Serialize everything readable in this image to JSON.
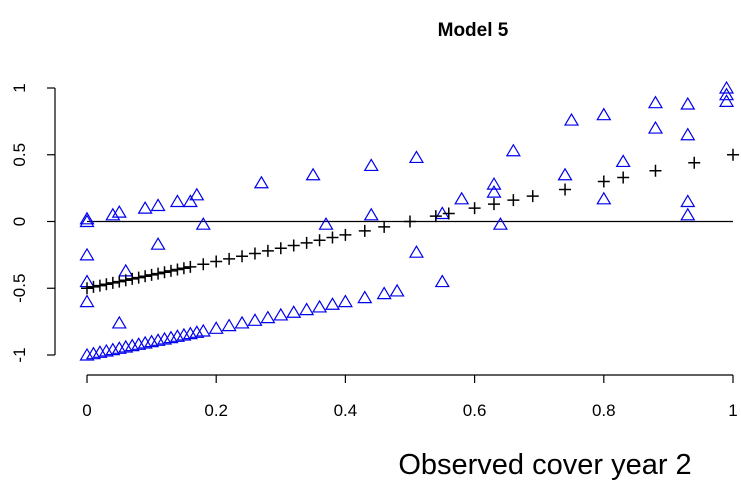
{
  "chart_data": {
    "type": "scatter",
    "title": "Model 5",
    "x_label": "Observed cover year 2",
    "xlim": [
      0,
      1
    ],
    "ylim": [
      -1,
      1
    ],
    "xticks": [
      0,
      0.2,
      0.4,
      0.6,
      0.8,
      1
    ],
    "yticks": [
      -1,
      -0.5,
      0,
      0.5,
      1
    ],
    "hline": 0,
    "series": [
      {
        "color": "#0000ee",
        "marker": "triangle",
        "x": [
          0,
          0.01,
          0.02,
          0.03,
          0.04,
          0.05,
          0.06,
          0.07,
          0.08,
          0.09,
          0.1,
          0.11,
          0.12,
          0.13,
          0.14,
          0.15,
          0.16,
          0.17,
          0.18,
          0.2,
          0.22,
          0.24,
          0.26,
          0.28,
          0.3,
          0.32,
          0.34,
          0.36,
          0.38,
          0.4,
          0.43,
          0.46,
          0.48,
          0,
          0,
          0.04,
          0.05,
          0.09,
          0.11,
          0.14,
          0.17,
          0.27,
          0.35,
          0.44,
          0.51,
          0.55,
          0.51,
          0.37,
          0.44,
          0.55,
          0.58,
          0.63,
          0.63,
          0.64,
          0.66,
          0.74,
          0.75,
          0.8,
          0.8,
          0.83,
          0.88,
          0.88,
          0.93,
          0.93,
          0.93,
          0.93,
          0.99,
          0.99,
          0.99,
          0,
          0,
          0,
          0.05,
          0.11,
          0.06,
          0.18,
          0.16
        ],
        "y": [
          -1,
          -0.99,
          -0.98,
          -0.97,
          -0.96,
          -0.95,
          -0.94,
          -0.93,
          -0.92,
          -0.91,
          -0.9,
          -0.89,
          -0.88,
          -0.87,
          -0.86,
          -0.85,
          -0.84,
          -0.83,
          -0.82,
          -0.8,
          -0.78,
          -0.76,
          -0.74,
          -0.72,
          -0.7,
          -0.68,
          -0.66,
          -0.64,
          -0.62,
          -0.6,
          -0.57,
          -0.54,
          -0.52,
          0,
          0.02,
          0.05,
          0.07,
          0.1,
          0.12,
          0.15,
          0.2,
          0.29,
          0.35,
          0.42,
          0.48,
          -0.45,
          -0.23,
          -0.02,
          0.05,
          0.06,
          0.17,
          0.28,
          0.22,
          -0.02,
          0.53,
          0.35,
          0.76,
          0.17,
          0.8,
          0.45,
          0.89,
          0.7,
          0.88,
          0.65,
          0.15,
          0.05,
          1,
          0.9,
          0.95,
          -0.25,
          -0.45,
          -0.6,
          -0.76,
          -0.17,
          -0.37,
          -0.02,
          0.15
        ]
      },
      {
        "color": "#000000",
        "marker": "plus",
        "x": [
          0,
          0.01,
          0.02,
          0.03,
          0.04,
          0.05,
          0.06,
          0.07,
          0.08,
          0.09,
          0.1,
          0.11,
          0.12,
          0.13,
          0.14,
          0.15,
          0.16,
          0.18,
          0.2,
          0.22,
          0.24,
          0.26,
          0.28,
          0.3,
          0.32,
          0.34,
          0.36,
          0.38,
          0.4,
          0.43,
          0.46,
          0.5,
          0.54,
          0.56,
          0.6,
          0.63,
          0.66,
          0.69,
          0.74,
          0.8,
          0.83,
          0.88,
          0.94,
          1
        ],
        "y": [
          -0.5,
          -0.49,
          -0.48,
          -0.47,
          -0.46,
          -0.45,
          -0.44,
          -0.43,
          -0.42,
          -0.41,
          -0.4,
          -0.39,
          -0.38,
          -0.37,
          -0.36,
          -0.35,
          -0.34,
          -0.32,
          -0.3,
          -0.28,
          -0.26,
          -0.24,
          -0.22,
          -0.2,
          -0.18,
          -0.16,
          -0.14,
          -0.12,
          -0.1,
          -0.07,
          -0.04,
          0,
          0.04,
          0.06,
          0.1,
          0.13,
          0.16,
          0.19,
          0.24,
          0.3,
          0.33,
          0.38,
          0.44,
          0.5
        ]
      }
    ]
  }
}
